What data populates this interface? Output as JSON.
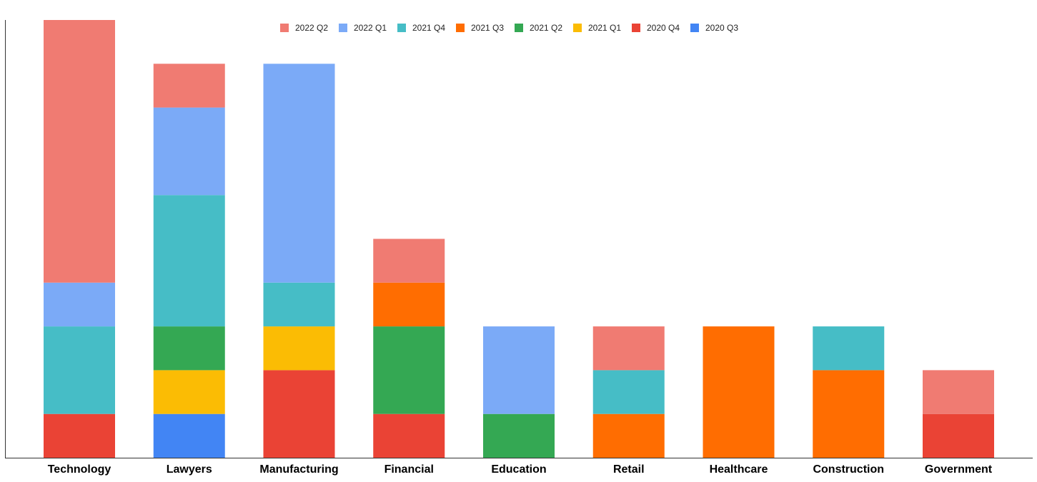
{
  "chart_data": {
    "type": "bar",
    "stacked": true,
    "title": "",
    "xlabel": "",
    "ylabel": "",
    "ylim": [
      0,
      10
    ],
    "grid": false,
    "legend_position": "top-center",
    "categories": [
      "Technology",
      "Lawyers",
      "Manufacturing",
      "Financial",
      "Education",
      "Retail",
      "Healthcare",
      "Construction",
      "Government"
    ],
    "series": [
      {
        "name": "2020 Q3",
        "color": "#4285F4",
        "values": [
          0,
          1,
          0,
          0,
          0,
          0,
          0,
          0,
          0
        ]
      },
      {
        "name": "2020 Q4",
        "color": "#EA4335",
        "values": [
          1,
          0,
          2,
          1,
          0,
          0,
          0,
          0,
          1
        ]
      },
      {
        "name": "2021 Q1",
        "color": "#FBBC04",
        "values": [
          0,
          1,
          1,
          0,
          0,
          0,
          0,
          0,
          0
        ]
      },
      {
        "name": "2021 Q2",
        "color": "#34A853",
        "values": [
          0,
          1,
          0,
          2,
          1,
          0,
          0,
          0,
          0
        ]
      },
      {
        "name": "2021 Q3",
        "color": "#FF6D01",
        "values": [
          0,
          0,
          0,
          1,
          0,
          1,
          3,
          2,
          0
        ]
      },
      {
        "name": "2021 Q4",
        "color": "#46BDC6",
        "values": [
          2,
          3,
          1,
          0,
          0,
          1,
          0,
          1,
          0
        ]
      },
      {
        "name": "2022 Q1",
        "color": "#7BAAF7",
        "values": [
          1,
          2,
          5,
          0,
          2,
          0,
          0,
          0,
          0
        ]
      },
      {
        "name": "2022 Q2",
        "color": "#F07B72",
        "values": [
          6,
          1,
          0,
          1,
          0,
          1,
          0,
          0,
          1
        ]
      }
    ],
    "legend_order": [
      "2022 Q2",
      "2022 Q1",
      "2021 Q4",
      "2021 Q3",
      "2021 Q2",
      "2021 Q1",
      "2020 Q4",
      "2020 Q3"
    ]
  }
}
